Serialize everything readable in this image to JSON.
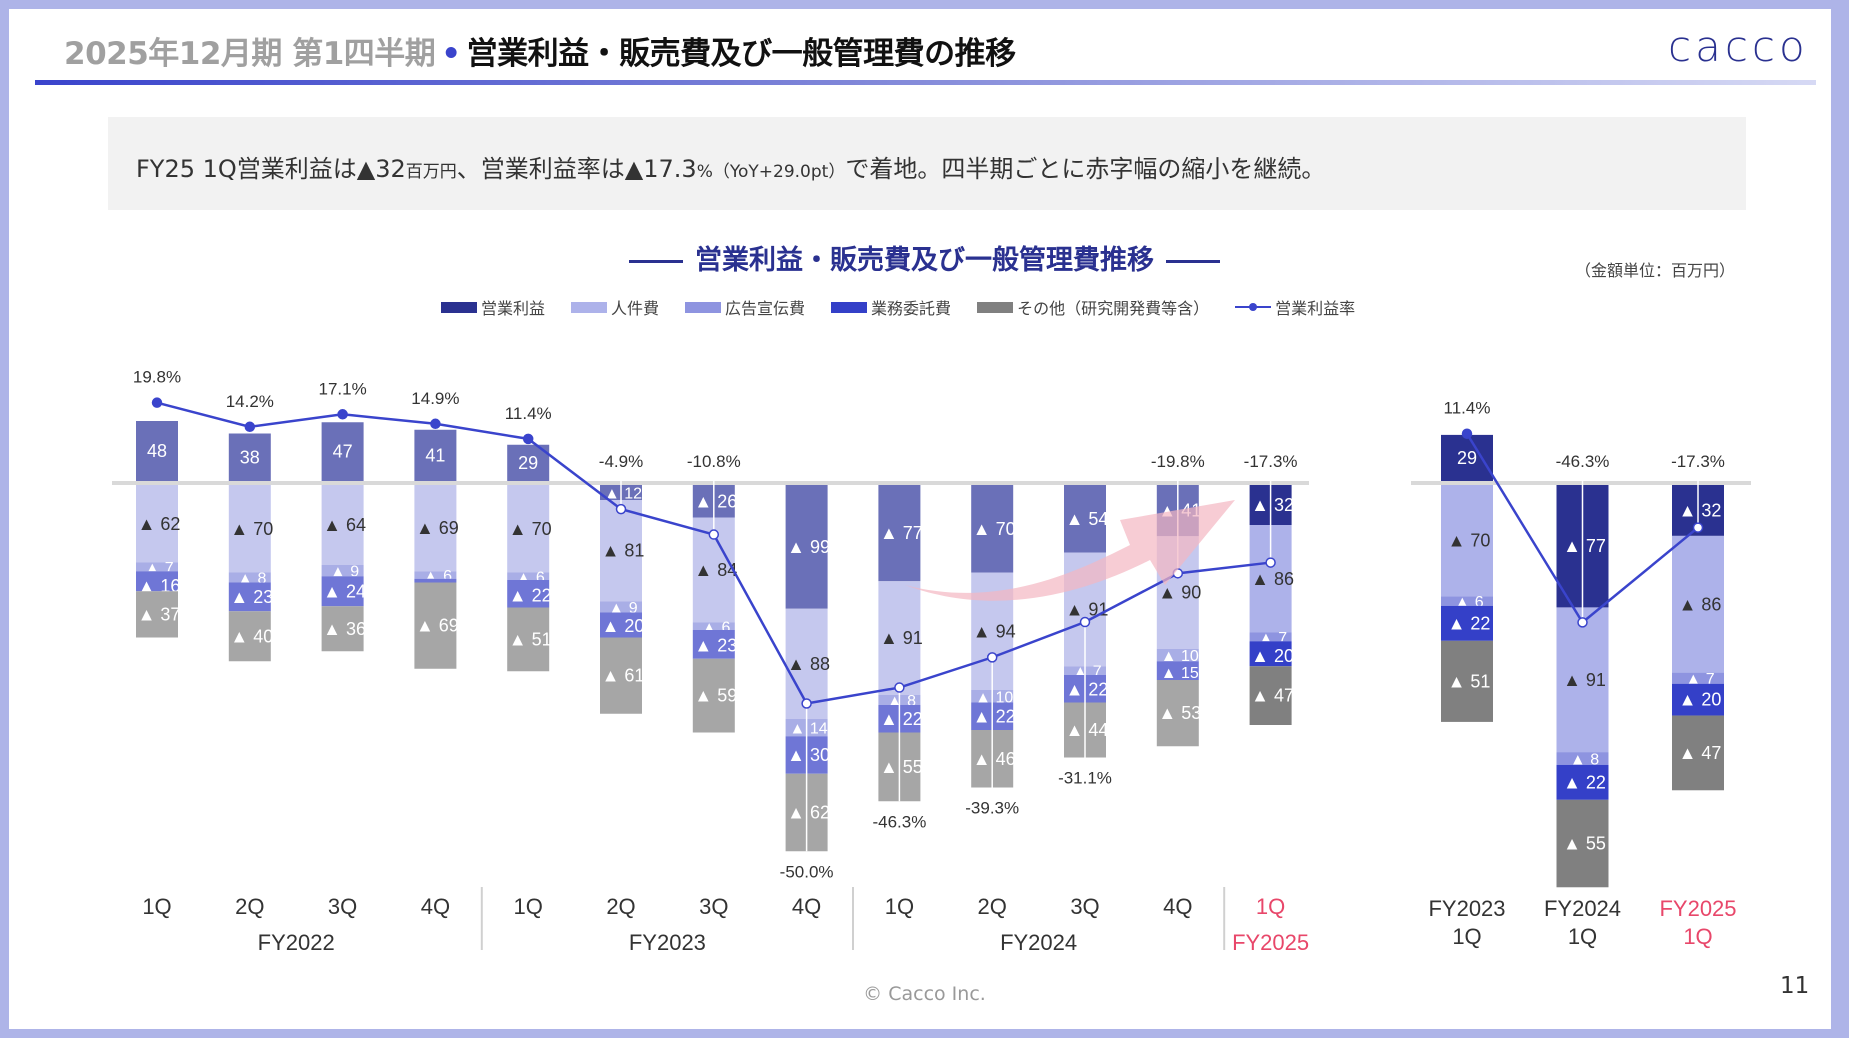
{
  "header": {
    "title_prefix": "2025年12月期 第1四半期",
    "title_separator": "•",
    "title_main": "営業利益・販売費及び一般管理費の推移",
    "logo_text": "cacco"
  },
  "summary": {
    "part1": "FY25 1Q営業利益は▲32",
    "unit1": "百万円",
    "part2": "、営業利益率は▲17.3",
    "unit2": "%（YoY+29.0pt）",
    "part3": "で着地。四半期ごとに赤字幅の縮小を継続。"
  },
  "chart_title": "営業利益・販売費及び一般管理費推移",
  "unit_note": "（金額単位：百万円）",
  "legend": [
    {
      "label": "営業利益",
      "color": "#2a3190",
      "type": "bar"
    },
    {
      "label": "人件費",
      "color": "#adb2ea",
      "type": "bar"
    },
    {
      "label": "広告宣伝費",
      "color": "#8e94e0",
      "type": "bar"
    },
    {
      "label": "業務委託費",
      "color": "#3440c8",
      "type": "bar"
    },
    {
      "label": "その他（研究開発費等含）",
      "color": "#808080",
      "type": "bar"
    },
    {
      "label": "営業利益率",
      "color": "#3a44cc",
      "type": "line"
    }
  ],
  "colors": {
    "normal": [
      "#6a70b8",
      "#c5c8ee",
      "#a9aee6",
      "#6f76d6",
      "#a6a6a6"
    ],
    "highlight": [
      "#2a3190",
      "#adb2ea",
      "#8e94e0",
      "#3440c8",
      "#808080"
    ],
    "line": "#3a44cc",
    "highlight_text": "#e8476a",
    "trend_arrow": "#f4b6c2"
  },
  "chart_data": [
    {
      "type": "bar",
      "stacked": true,
      "units": "百万円",
      "categories": [
        "1Q",
        "2Q",
        "3Q",
        "4Q",
        "1Q",
        "2Q",
        "3Q",
        "4Q",
        "1Q",
        "2Q",
        "3Q",
        "4Q",
        "1Q"
      ],
      "groups": [
        {
          "label": "FY2022",
          "count": 4
        },
        {
          "label": "FY2023",
          "count": 4
        },
        {
          "label": "FY2024",
          "count": 4
        },
        {
          "label": "FY2025",
          "count": 1,
          "highlight": true
        }
      ],
      "series": [
        {
          "name": "営業利益",
          "values": [
            48,
            38,
            47,
            41,
            29,
            -12,
            -26,
            -99,
            -77,
            -70,
            -54,
            -41,
            -32
          ]
        },
        {
          "name": "人件費",
          "values": [
            62,
            70,
            64,
            69,
            70,
            81,
            84,
            88,
            91,
            94,
            91,
            90,
            86
          ]
        },
        {
          "name": "広告宣伝費",
          "values": [
            7,
            8,
            9,
            6,
            6,
            9,
            6,
            14,
            8,
            10,
            7,
            10,
            7
          ]
        },
        {
          "name": "業務委託費",
          "values": [
            16,
            23,
            24,
            3,
            22,
            20,
            23,
            30,
            22,
            22,
            22,
            15,
            20
          ]
        },
        {
          "name": "その他（研究開発費等含）",
          "values": [
            37,
            40,
            36,
            69,
            51,
            61,
            59,
            62,
            55,
            46,
            44,
            53,
            47
          ]
        }
      ],
      "line": {
        "name": "営業利益率",
        "unit": "%",
        "values": [
          19.8,
          14.2,
          17.1,
          14.9,
          11.4,
          -4.9,
          -10.8,
          -50.0,
          -46.3,
          -39.3,
          -31.1,
          -19.8,
          -17.3
        ]
      },
      "line_labels": [
        "19.8%",
        "14.2%",
        "17.1%",
        "14.9%",
        "11.4%",
        "-4.9%",
        "-10.8%",
        "-50.0%",
        "-46.3%",
        "-39.3%",
        "-31.1%",
        "-19.8%",
        "-17.3%"
      ],
      "annotation": "trend arrow (improving)"
    },
    {
      "type": "bar",
      "stacked": true,
      "units": "百万円",
      "categories": [
        [
          "FY2023",
          "1Q"
        ],
        [
          "FY2024",
          "1Q"
        ],
        [
          "FY2025",
          "1Q"
        ]
      ],
      "highlight_index": 2,
      "series": [
        {
          "name": "営業利益",
          "values": [
            29,
            -77,
            -32
          ]
        },
        {
          "name": "人件費",
          "values": [
            70,
            91,
            86
          ]
        },
        {
          "name": "広告宣伝費",
          "values": [
            6,
            8,
            7
          ]
        },
        {
          "name": "業務委託費",
          "values": [
            22,
            22,
            20
          ]
        },
        {
          "name": "その他（研究開発費等含）",
          "values": [
            51,
            55,
            47
          ]
        }
      ],
      "line": {
        "name": "営業利益率",
        "unit": "%",
        "values": [
          11.4,
          -46.3,
          -17.3
        ]
      },
      "line_labels": [
        "11.4%",
        "-46.3%",
        "-17.3%"
      ]
    }
  ],
  "footer": {
    "copyright": "© Cacco Inc.",
    "page_number": "11"
  }
}
